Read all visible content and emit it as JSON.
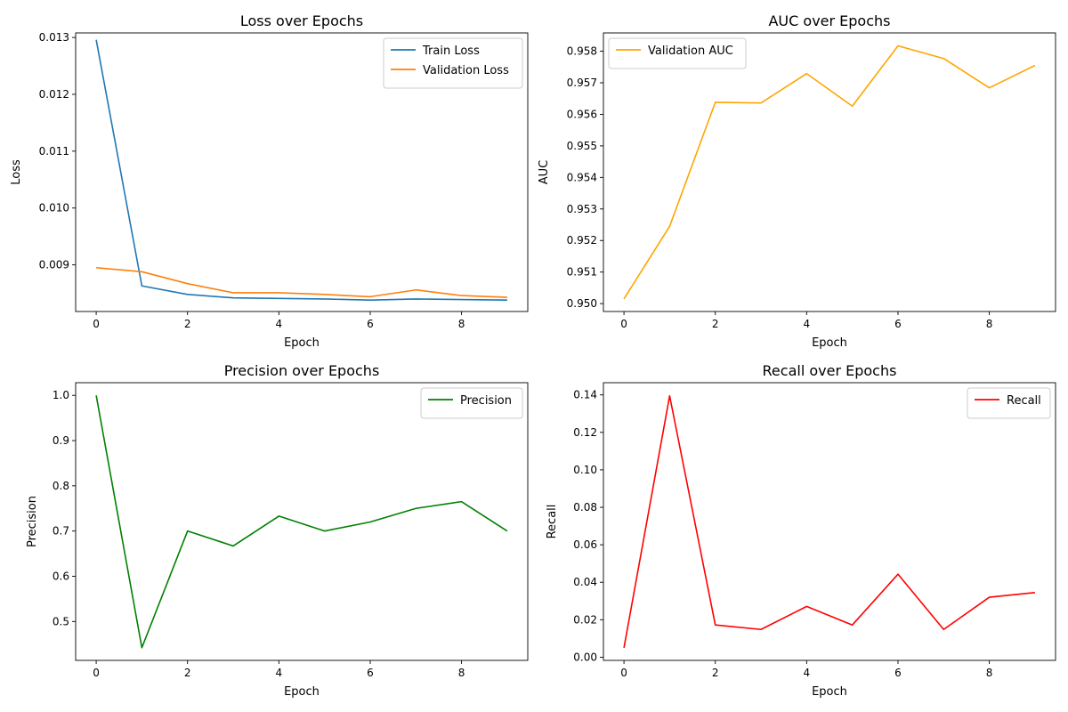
{
  "chart_data": [
    {
      "type": "line",
      "title": "Loss over Epochs",
      "xlabel": "Epoch",
      "ylabel": "Loss",
      "xlim": [
        -0.45,
        9.45
      ],
      "ylim": [
        0.00818,
        0.01308
      ],
      "xticks": [
        0,
        2,
        4,
        6,
        8
      ],
      "xtick_labels": [
        "0",
        "2",
        "4",
        "6",
        "8"
      ],
      "yticks": [
        0.009,
        0.01,
        0.011,
        0.012,
        0.013
      ],
      "ytick_labels": [
        "0.009",
        "0.010",
        "0.011",
        "0.012",
        "0.013"
      ],
      "grid": false,
      "legend_position": "top-right",
      "x": [
        0,
        1,
        2,
        3,
        4,
        5,
        6,
        7,
        8,
        9
      ],
      "series": [
        {
          "name": "Train Loss",
          "color": "#1f77b4",
          "values": [
            0.01296,
            0.00863,
            0.00848,
            0.00842,
            0.00841,
            0.0084,
            0.00838,
            0.0084,
            0.00839,
            0.00838
          ]
        },
        {
          "name": "Validation Loss",
          "color": "#ff7f0e",
          "values": [
            0.00895,
            0.00888,
            0.00867,
            0.00851,
            0.00851,
            0.00848,
            0.00844,
            0.00856,
            0.00846,
            0.00843
          ]
        }
      ]
    },
    {
      "type": "line",
      "title": "AUC over Epochs",
      "xlabel": "Epoch",
      "ylabel": "AUC",
      "xlim": [
        -0.45,
        9.45
      ],
      "ylim": [
        0.94975,
        0.95858
      ],
      "xticks": [
        0,
        2,
        4,
        6,
        8
      ],
      "xtick_labels": [
        "0",
        "2",
        "4",
        "6",
        "8"
      ],
      "yticks": [
        0.95,
        0.951,
        0.952,
        0.953,
        0.954,
        0.955,
        0.956,
        0.957,
        0.958
      ],
      "ytick_labels": [
        "0.950",
        "0.951",
        "0.952",
        "0.953",
        "0.954",
        "0.955",
        "0.956",
        "0.957",
        "0.958"
      ],
      "grid": false,
      "legend_position": "top-left",
      "x": [
        0,
        1,
        2,
        3,
        4,
        5,
        6,
        7,
        8,
        9
      ],
      "series": [
        {
          "name": "Validation AUC",
          "color": "#ffa500",
          "values": [
            0.95015,
            0.95245,
            0.95638,
            0.95636,
            0.95729,
            0.95626,
            0.95817,
            0.95777,
            0.95684,
            0.95755
          ]
        }
      ]
    },
    {
      "type": "line",
      "title": "Precision over Epochs",
      "xlabel": "Epoch",
      "ylabel": "Precision",
      "xlim": [
        -0.45,
        9.45
      ],
      "ylim": [
        0.414,
        1.028
      ],
      "xticks": [
        0,
        2,
        4,
        6,
        8
      ],
      "xtick_labels": [
        "0",
        "2",
        "4",
        "6",
        "8"
      ],
      "yticks": [
        0.5,
        0.6,
        0.7,
        0.8,
        0.9,
        1.0
      ],
      "ytick_labels": [
        "0.5",
        "0.6",
        "0.7",
        "0.8",
        "0.9",
        "1.0"
      ],
      "grid": false,
      "legend_position": "top-right",
      "x": [
        0,
        1,
        2,
        3,
        4,
        5,
        6,
        7,
        8,
        9
      ],
      "series": [
        {
          "name": "Precision",
          "color": "#008000",
          "values": [
            1.0,
            0.442,
            0.7,
            0.667,
            0.733,
            0.7,
            0.72,
            0.75,
            0.765,
            0.7
          ]
        }
      ]
    },
    {
      "type": "line",
      "title": "Recall over Epochs",
      "xlabel": "Epoch",
      "ylabel": "Recall",
      "xlim": [
        -0.45,
        9.45
      ],
      "ylim": [
        -0.0017,
        0.1465
      ],
      "xticks": [
        0,
        2,
        4,
        6,
        8
      ],
      "xtick_labels": [
        "0",
        "2",
        "4",
        "6",
        "8"
      ],
      "yticks": [
        0.0,
        0.02,
        0.04,
        0.06,
        0.08,
        0.1,
        0.12,
        0.14
      ],
      "ytick_labels": [
        "0.00",
        "0.02",
        "0.04",
        "0.06",
        "0.08",
        "0.10",
        "0.12",
        "0.14"
      ],
      "grid": false,
      "legend_position": "top-right",
      "x": [
        0,
        1,
        2,
        3,
        4,
        5,
        6,
        7,
        8,
        9
      ],
      "series": [
        {
          "name": "Recall",
          "color": "#ff0000",
          "values": [
            0.005,
            0.1395,
            0.0172,
            0.0148,
            0.0271,
            0.0172,
            0.0443,
            0.0148,
            0.032,
            0.0345
          ]
        }
      ]
    }
  ]
}
